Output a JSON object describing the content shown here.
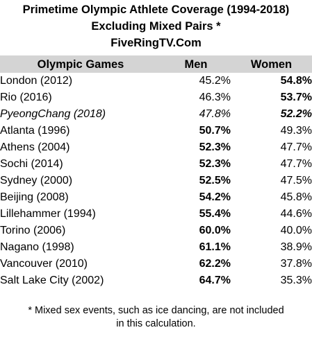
{
  "title": {
    "line1": "Primetime Olympic Athlete Coverage (1994-2018)",
    "line2": "Excluding Mixed Pairs *",
    "line3": "FiveRingTV.Com"
  },
  "chart_data": {
    "type": "table",
    "columns": [
      "Olympic Games",
      "Men",
      "Women"
    ],
    "rows": [
      {
        "game": "London (2012)",
        "men": "45.2%",
        "women": "54.8%",
        "bold": "women",
        "italic": false
      },
      {
        "game": "Rio (2016)",
        "men": "46.3%",
        "women": "53.7%",
        "bold": "women",
        "italic": false
      },
      {
        "game": "PyeongChang (2018)",
        "men": "47.8%",
        "women": "52.2%",
        "bold": "women",
        "italic": true
      },
      {
        "game": "Atlanta (1996)",
        "men": "50.7%",
        "women": "49.3%",
        "bold": "men",
        "italic": false
      },
      {
        "game": "Athens (2004)",
        "men": "52.3%",
        "women": "47.7%",
        "bold": "men",
        "italic": false
      },
      {
        "game": "Sochi (2014)",
        "men": "52.3%",
        "women": "47.7%",
        "bold": "men",
        "italic": false
      },
      {
        "game": "Sydney (2000)",
        "men": "52.5%",
        "women": "47.5%",
        "bold": "men",
        "italic": false
      },
      {
        "game": "Beijing (2008)",
        "men": "54.2%",
        "women": "45.8%",
        "bold": "men",
        "italic": false
      },
      {
        "game": "Lillehammer (1994)",
        "men": "55.4%",
        "women": "44.6%",
        "bold": "men",
        "italic": false
      },
      {
        "game": "Torino (2006)",
        "men": "60.0%",
        "women": "40.0%",
        "bold": "men",
        "italic": false
      },
      {
        "game": "Nagano (1998)",
        "men": "61.1%",
        "women": "38.9%",
        "bold": "men",
        "italic": false
      },
      {
        "game": "Vancouver (2010)",
        "men": "62.2%",
        "women": "37.8%",
        "bold": "men",
        "italic": false
      },
      {
        "game": "Salt Lake City (2002)",
        "men": "64.7%",
        "women": "35.3%",
        "bold": "men",
        "italic": false
      }
    ]
  },
  "footnote": {
    "line1": "* Mixed sex events, such as ice dancing, are not included",
    "line2": "in this calculation."
  },
  "colors": {
    "header_background": "#d4d4d4",
    "text": "#000000",
    "background": "#ffffff"
  }
}
